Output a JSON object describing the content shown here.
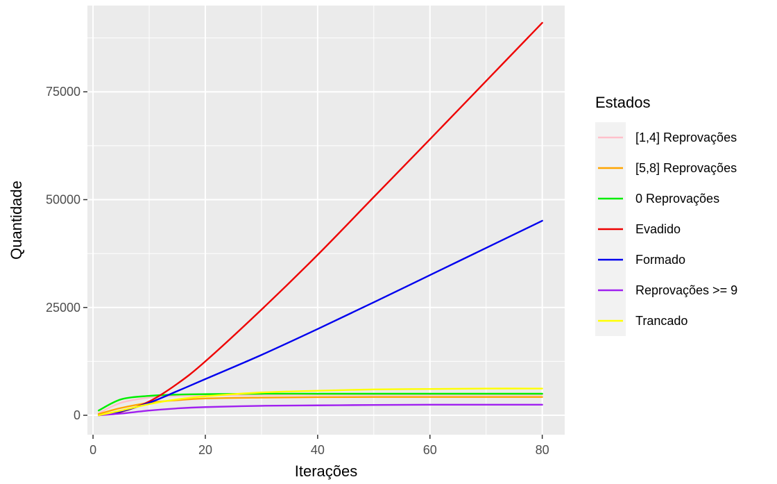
{
  "chart_data": {
    "type": "line",
    "xlabel": "Iterações",
    "ylabel": "Quantidade",
    "xlim": [
      -1,
      84
    ],
    "ylim": [
      -4500,
      95000
    ],
    "x_ticks": [
      0,
      20,
      40,
      60,
      80
    ],
    "x_tick_labels": [
      "0",
      "20",
      "40",
      "60",
      "80"
    ],
    "y_ticks": [
      0,
      25000,
      50000,
      75000
    ],
    "y_tick_labels": [
      "0",
      "25000",
      "50000",
      "75000"
    ],
    "grid": true,
    "background": "#ebebeb",
    "legend": {
      "title": "Estados",
      "position": "right"
    },
    "x": [
      1,
      5,
      10,
      15,
      20,
      30,
      40,
      50,
      60,
      70,
      80
    ],
    "series": [
      {
        "name": "[1,4] Reprovações",
        "color": "#ffc0cb",
        "values": [
          500,
          2900,
          4100,
          4500,
          4600,
          4700,
          4750,
          4750,
          4750,
          4750,
          4750
        ]
      },
      {
        "name": "[5,8] Reprovações",
        "color": "#ffa500",
        "values": [
          300,
          1700,
          2900,
          3500,
          3900,
          4100,
          4200,
          4250,
          4250,
          4250,
          4250
        ]
      },
      {
        "name": "0 Reprovações",
        "color": "#00ee00",
        "values": [
          1100,
          3700,
          4500,
          4800,
          4900,
          5000,
          5000,
          5000,
          5000,
          5000,
          5000
        ]
      },
      {
        "name": "Evadido",
        "color": "#ee0000",
        "values": [
          0,
          800,
          3200,
          7300,
          12500,
          24500,
          37200,
          50600,
          64000,
          77500,
          91000
        ]
      },
      {
        "name": "Formado",
        "color": "#0000ee",
        "values": [
          0,
          900,
          2900,
          5600,
          8400,
          14000,
          20000,
          26200,
          32500,
          38800,
          45100
        ]
      },
      {
        "name": "Reprovações >= 9",
        "color": "#a020f0",
        "values": [
          0,
          400,
          1100,
          1600,
          1900,
          2200,
          2300,
          2400,
          2450,
          2450,
          2450
        ]
      },
      {
        "name": "Trancado",
        "color": "#ffff00",
        "values": [
          0,
          1100,
          2600,
          3700,
          4400,
          5300,
          5700,
          6000,
          6100,
          6200,
          6200
        ]
      }
    ]
  }
}
